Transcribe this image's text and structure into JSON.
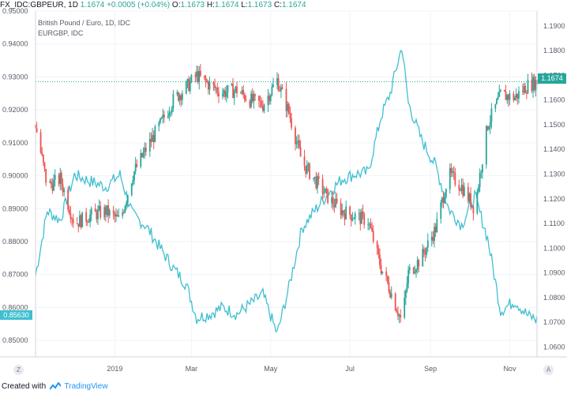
{
  "header": {
    "symbol": "FX_IDC:GBPEUR, 1D",
    "last": "1.1674",
    "change": "+0.0005 (+0.04%)",
    "o_label": "O:",
    "o": "1.1673",
    "h_label": "H:",
    "h": "1.1674",
    "l_label": "L:",
    "l": "1.1673",
    "c_label": "C:",
    "c": "1.1674"
  },
  "legend": {
    "main": "British Pound / Euro, 1D, IDC",
    "overlay": "EURGBP, IDC"
  },
  "badges": {
    "left_value": "0.85630",
    "right_value": "1.1674",
    "left_color": "#3fbfd0",
    "right_color": "#26a69a"
  },
  "buttons": {
    "zoom": "Z",
    "auto": "A"
  },
  "footer": {
    "created_with": "Created with",
    "brand": "TradingView"
  },
  "colors": {
    "up": "#26a69a",
    "down": "#ef5350",
    "overlay_line": "#3fbfd0",
    "last_price_line": "#26a69a"
  },
  "chart_data": {
    "type": "line",
    "x_labels": [
      "2019",
      "Mar",
      "May",
      "Jul",
      "Sep",
      "Nov"
    ],
    "x_range": [
      "2018-11-01",
      "2019-11-22"
    ],
    "y_left": {
      "label": "EURGBP",
      "range": [
        0.845,
        0.95
      ],
      "ticks": [
        "0.85000",
        "0.86000",
        "0.87000",
        "0.88000",
        "0.89000",
        "0.90000",
        "0.91000",
        "0.92000",
        "0.93000",
        "0.94000",
        "0.95000"
      ]
    },
    "y_right": {
      "label": "GBPEUR",
      "range": [
        1.056,
        1.196
      ],
      "ticks": [
        "1.0600",
        "1.0700",
        "1.0800",
        "1.0900",
        "1.1000",
        "1.1100",
        "1.1200",
        "1.1300",
        "1.1400",
        "1.1500",
        "1.1600",
        "1.1700",
        "1.1800",
        "1.1900"
      ]
    },
    "grid": true,
    "series": [
      {
        "name": "EURGBP, IDC",
        "style": "line",
        "axis": "left",
        "x": [
          "2018-11-01",
          "2018-11-10",
          "2018-11-20",
          "2018-12-01",
          "2018-12-12",
          "2018-12-25",
          "2019-01-05",
          "2019-01-15",
          "2019-01-25",
          "2019-02-05",
          "2019-02-15",
          "2019-02-25",
          "2019-03-05",
          "2019-03-15",
          "2019-03-25",
          "2019-04-05",
          "2019-04-15",
          "2019-04-25",
          "2019-05-06",
          "2019-05-15",
          "2019-05-25",
          "2019-06-05",
          "2019-06-15",
          "2019-06-25",
          "2019-07-05",
          "2019-07-15",
          "2019-07-25",
          "2019-08-01",
          "2019-08-10",
          "2019-08-15",
          "2019-08-25",
          "2019-09-05",
          "2019-09-15",
          "2019-09-25",
          "2019-10-05",
          "2019-10-15",
          "2019-10-25",
          "2019-11-05",
          "2019-11-15",
          "2019-11-22"
        ],
        "values": [
          0.8697,
          0.8893,
          0.8865,
          0.9002,
          0.8985,
          0.8966,
          0.9003,
          0.888,
          0.8848,
          0.878,
          0.872,
          0.867,
          0.8568,
          0.858,
          0.86,
          0.858,
          0.861,
          0.864,
          0.852,
          0.866,
          0.884,
          0.89,
          0.895,
          0.899,
          0.9005,
          0.901,
          0.918,
          0.925,
          0.9393,
          0.922,
          0.911,
          0.903,
          0.89,
          0.885,
          0.894,
          0.881,
          0.859,
          0.862,
          0.8575,
          0.8563
        ]
      },
      {
        "name": "British Pound / Euro, 1D, IDC",
        "style": "candles",
        "axis": "right",
        "x": [
          "2018-11-01",
          "2018-11-10",
          "2018-11-20",
          "2018-12-01",
          "2018-12-12",
          "2018-12-25",
          "2019-01-05",
          "2019-01-15",
          "2019-01-25",
          "2019-02-05",
          "2019-02-15",
          "2019-02-25",
          "2019-03-05",
          "2019-03-15",
          "2019-03-25",
          "2019-04-05",
          "2019-04-15",
          "2019-04-25",
          "2019-05-06",
          "2019-05-15",
          "2019-05-25",
          "2019-06-05",
          "2019-06-15",
          "2019-06-25",
          "2019-07-05",
          "2019-07-15",
          "2019-07-25",
          "2019-08-01",
          "2019-08-10",
          "2019-08-15",
          "2019-08-25",
          "2019-09-05",
          "2019-09-15",
          "2019-09-25",
          "2019-10-05",
          "2019-10-15",
          "2019-10-25",
          "2019-11-05",
          "2019-11-15",
          "2019-11-22"
        ],
        "values": [
          1.15,
          1.125,
          1.128,
          1.11,
          1.113,
          1.115,
          1.111,
          1.13,
          1.14,
          1.15,
          1.16,
          1.165,
          1.17,
          1.166,
          1.163,
          1.164,
          1.16,
          1.158,
          1.168,
          1.155,
          1.135,
          1.127,
          1.12,
          1.115,
          1.113,
          1.111,
          1.092,
          1.083,
          1.07,
          1.09,
          1.096,
          1.108,
          1.13,
          1.125,
          1.116,
          1.15,
          1.162,
          1.161,
          1.166,
          1.1674
        ]
      }
    ]
  }
}
